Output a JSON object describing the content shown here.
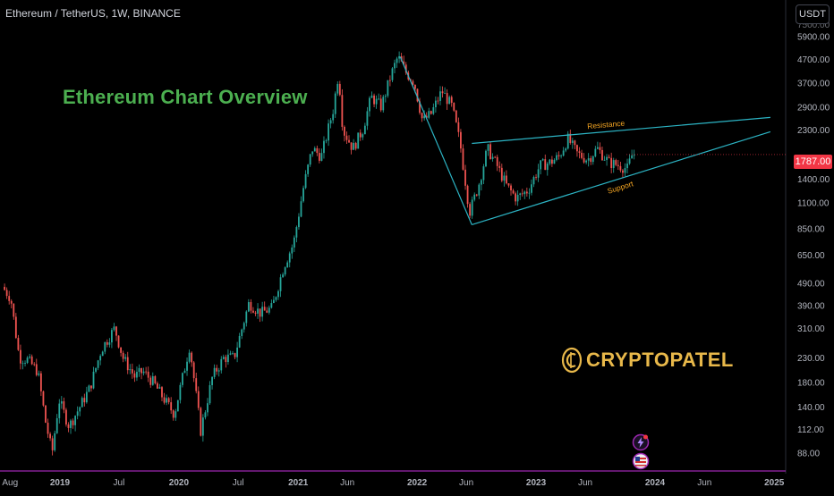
{
  "header": {
    "symbol_title": "Ethereum / TetherUS, 1W, BINANCE",
    "currency": "USDT"
  },
  "overlay": {
    "title": "Ethereum Chart Overview",
    "brand": "CRYPTOPATEL",
    "brand_icon": "crypto-c-coin-icon"
  },
  "colors": {
    "up": "#26a69a",
    "down": "#ef5350",
    "trendline": "#2cb4c4",
    "annotation": "#f5a623",
    "title": "#4caf50",
    "brand": "#e8b84a",
    "price_badge": "#f23645",
    "time_axis_line": "#9c27b0"
  },
  "chart_data": {
    "type": "candlestick",
    "title": "Ethereum / TetherUS, 1W, BINANCE",
    "y_scale": "log",
    "ylim": [
      78,
      7500
    ],
    "y_ticks": [
      "5900.00",
      "4700.00",
      "3700.00",
      "2900.00",
      "2300.00",
      "1787.00",
      "1400.00",
      "1100.00",
      "850.00",
      "650.00",
      "490.00",
      "390.00",
      "310.00",
      "230.00",
      "180.00",
      "140.00",
      "112.00",
      "88.00"
    ],
    "x_ticks": [
      "Aug",
      "2019",
      "Jul",
      "2020",
      "Jul",
      "2021",
      "Jun",
      "2022",
      "Jun",
      "2023",
      "Jun",
      "2024",
      "Jun",
      "2025"
    ],
    "current_price": "1787.00",
    "price_path": [
      [
        "2018-07-15",
        470
      ],
      [
        "2018-08-10",
        420
      ],
      [
        "2018-09-05",
        230
      ],
      [
        "2018-10-01",
        225
      ],
      [
        "2018-11-01",
        200
      ],
      [
        "2018-11-25",
        120
      ],
      [
        "2018-12-15",
        88
      ],
      [
        "2019-01-05",
        150
      ],
      [
        "2019-02-05",
        115
      ],
      [
        "2019-03-10",
        140
      ],
      [
        "2019-04-10",
        170
      ],
      [
        "2019-05-15",
        250
      ],
      [
        "2019-06-25",
        310
      ],
      [
        "2019-07-20",
        230
      ],
      [
        "2019-08-25",
        190
      ],
      [
        "2019-09-20",
        200
      ],
      [
        "2019-10-20",
        180
      ],
      [
        "2019-11-25",
        150
      ],
      [
        "2019-12-25",
        130
      ],
      [
        "2020-02-10",
        260
      ],
      [
        "2020-03-15",
        110
      ],
      [
        "2020-04-20",
        190
      ],
      [
        "2020-05-25",
        230
      ],
      [
        "2020-06-25",
        230
      ],
      [
        "2020-08-10",
        400
      ],
      [
        "2020-09-15",
        360
      ],
      [
        "2020-10-20",
        380
      ],
      [
        "2020-11-25",
        580
      ],
      [
        "2020-12-25",
        730
      ],
      [
        "2021-01-25",
        1300
      ],
      [
        "2021-02-20",
        1900
      ],
      [
        "2021-03-20",
        1750
      ],
      [
        "2021-04-25",
        2800
      ],
      [
        "2021-05-12",
        4100
      ],
      [
        "2021-05-25",
        2300
      ],
      [
        "2021-06-25",
        1900
      ],
      [
        "2021-07-25",
        2300
      ],
      [
        "2021-08-20",
        3200
      ],
      [
        "2021-09-20",
        2900
      ],
      [
        "2021-10-20",
        4000
      ],
      [
        "2021-11-10",
        4800
      ],
      [
        "2021-12-05",
        4100
      ],
      [
        "2021-12-30",
        3700
      ],
      [
        "2022-01-25",
        2500
      ],
      [
        "2022-02-20",
        2700
      ],
      [
        "2022-03-25",
        3400
      ],
      [
        "2022-04-25",
        2900
      ],
      [
        "2022-05-20",
        2000
      ],
      [
        "2022-06-18",
        1000
      ],
      [
        "2022-07-15",
        1300
      ],
      [
        "2022-08-12",
        1900
      ],
      [
        "2022-09-10",
        1600
      ],
      [
        "2022-10-10",
        1300
      ],
      [
        "2022-11-09",
        1150
      ],
      [
        "2022-12-15",
        1250
      ],
      [
        "2023-01-20",
        1600
      ],
      [
        "2023-02-20",
        1650
      ],
      [
        "2023-03-20",
        1750
      ],
      [
        "2023-04-15",
        2100
      ],
      [
        "2023-05-15",
        1800
      ],
      [
        "2023-06-15",
        1700
      ],
      [
        "2023-07-15",
        1900
      ],
      [
        "2023-08-20",
        1650
      ],
      [
        "2023-09-20",
        1600
      ],
      [
        "2023-10-15",
        1550
      ],
      [
        "2023-10-30",
        1787
      ]
    ],
    "drawings": [
      {
        "kind": "line",
        "points": [
          [
            "2021-11-10",
            4800
          ],
          [
            "2022-06-18",
            880
          ]
        ]
      },
      {
        "kind": "line",
        "label": "Resistance",
        "points": [
          [
            "2022-06-18",
            2000
          ],
          [
            "2024-12-20",
            2600
          ]
        ]
      },
      {
        "kind": "line",
        "label": "Support",
        "points": [
          [
            "2022-06-18",
            880
          ],
          [
            "2024-12-20",
            2250
          ]
        ]
      }
    ]
  }
}
